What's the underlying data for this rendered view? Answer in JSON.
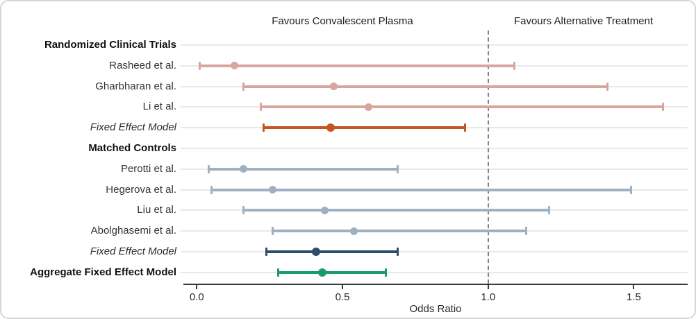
{
  "chart_data": {
    "type": "scatter",
    "subtype": "forest-plot",
    "xlabel": "Odds Ratio",
    "xticks": [
      "0.0",
      "0.5",
      "1.0",
      "1.5"
    ],
    "xtick_values": [
      0,
      0.5,
      1.0,
      1.5
    ],
    "xlim": [
      -0.046,
      1.68
    ],
    "reference_line": 1.0,
    "grid": true,
    "legend": "none",
    "annotations": {
      "left": "Favours Convalescent Plasma",
      "right": "Favours Alternative Treatment"
    },
    "colors": {
      "rct_study": "#d8a69e",
      "rct_summary": "#c4571e",
      "mc_study": "#9fb0c2",
      "mc_summary": "#2c4d6e",
      "aggregate": "#189e68",
      "grid": "#e8e8e8",
      "reference_line": "#828282",
      "axis": "#383838"
    },
    "rows": [
      {
        "label": "Randomized Clinical Trials",
        "type": "header"
      },
      {
        "label": "Rasheed et al.",
        "type": "study",
        "color_key": "rct_study",
        "or": 0.13,
        "ci": [
          0.01,
          1.09
        ]
      },
      {
        "label": "Gharbharan et al.",
        "type": "study",
        "color_key": "rct_study",
        "or": 0.47,
        "ci": [
          0.16,
          1.41
        ]
      },
      {
        "label": "Li et al.",
        "type": "study",
        "color_key": "rct_study",
        "or": 0.59,
        "ci": [
          0.22,
          1.6
        ]
      },
      {
        "label": "Fixed Effect Model",
        "type": "summary",
        "color_key": "rct_summary",
        "or": 0.46,
        "ci": [
          0.23,
          0.92
        ]
      },
      {
        "label": "Matched Controls",
        "type": "header"
      },
      {
        "label": "Perotti et al.",
        "type": "study",
        "color_key": "mc_study",
        "or": 0.16,
        "ci": [
          0.04,
          0.69
        ]
      },
      {
        "label": "Hegerova et al.",
        "type": "study",
        "color_key": "mc_study",
        "or": 0.26,
        "ci": [
          0.05,
          1.49
        ]
      },
      {
        "label": "Liu et al.",
        "type": "study",
        "color_key": "mc_study",
        "or": 0.44,
        "ci": [
          0.16,
          1.21
        ]
      },
      {
        "label": "Abolghasemi et al.",
        "type": "study",
        "color_key": "mc_study",
        "or": 0.54,
        "ci": [
          0.26,
          1.13
        ]
      },
      {
        "label": "Fixed Effect Model",
        "type": "summary",
        "color_key": "mc_summary",
        "or": 0.41,
        "ci": [
          0.24,
          0.69
        ]
      },
      {
        "label": "Aggregate Fixed Effect Model",
        "type": "aggregate",
        "color_key": "aggregate",
        "or": 0.43,
        "ci": [
          0.28,
          0.65
        ]
      }
    ]
  }
}
